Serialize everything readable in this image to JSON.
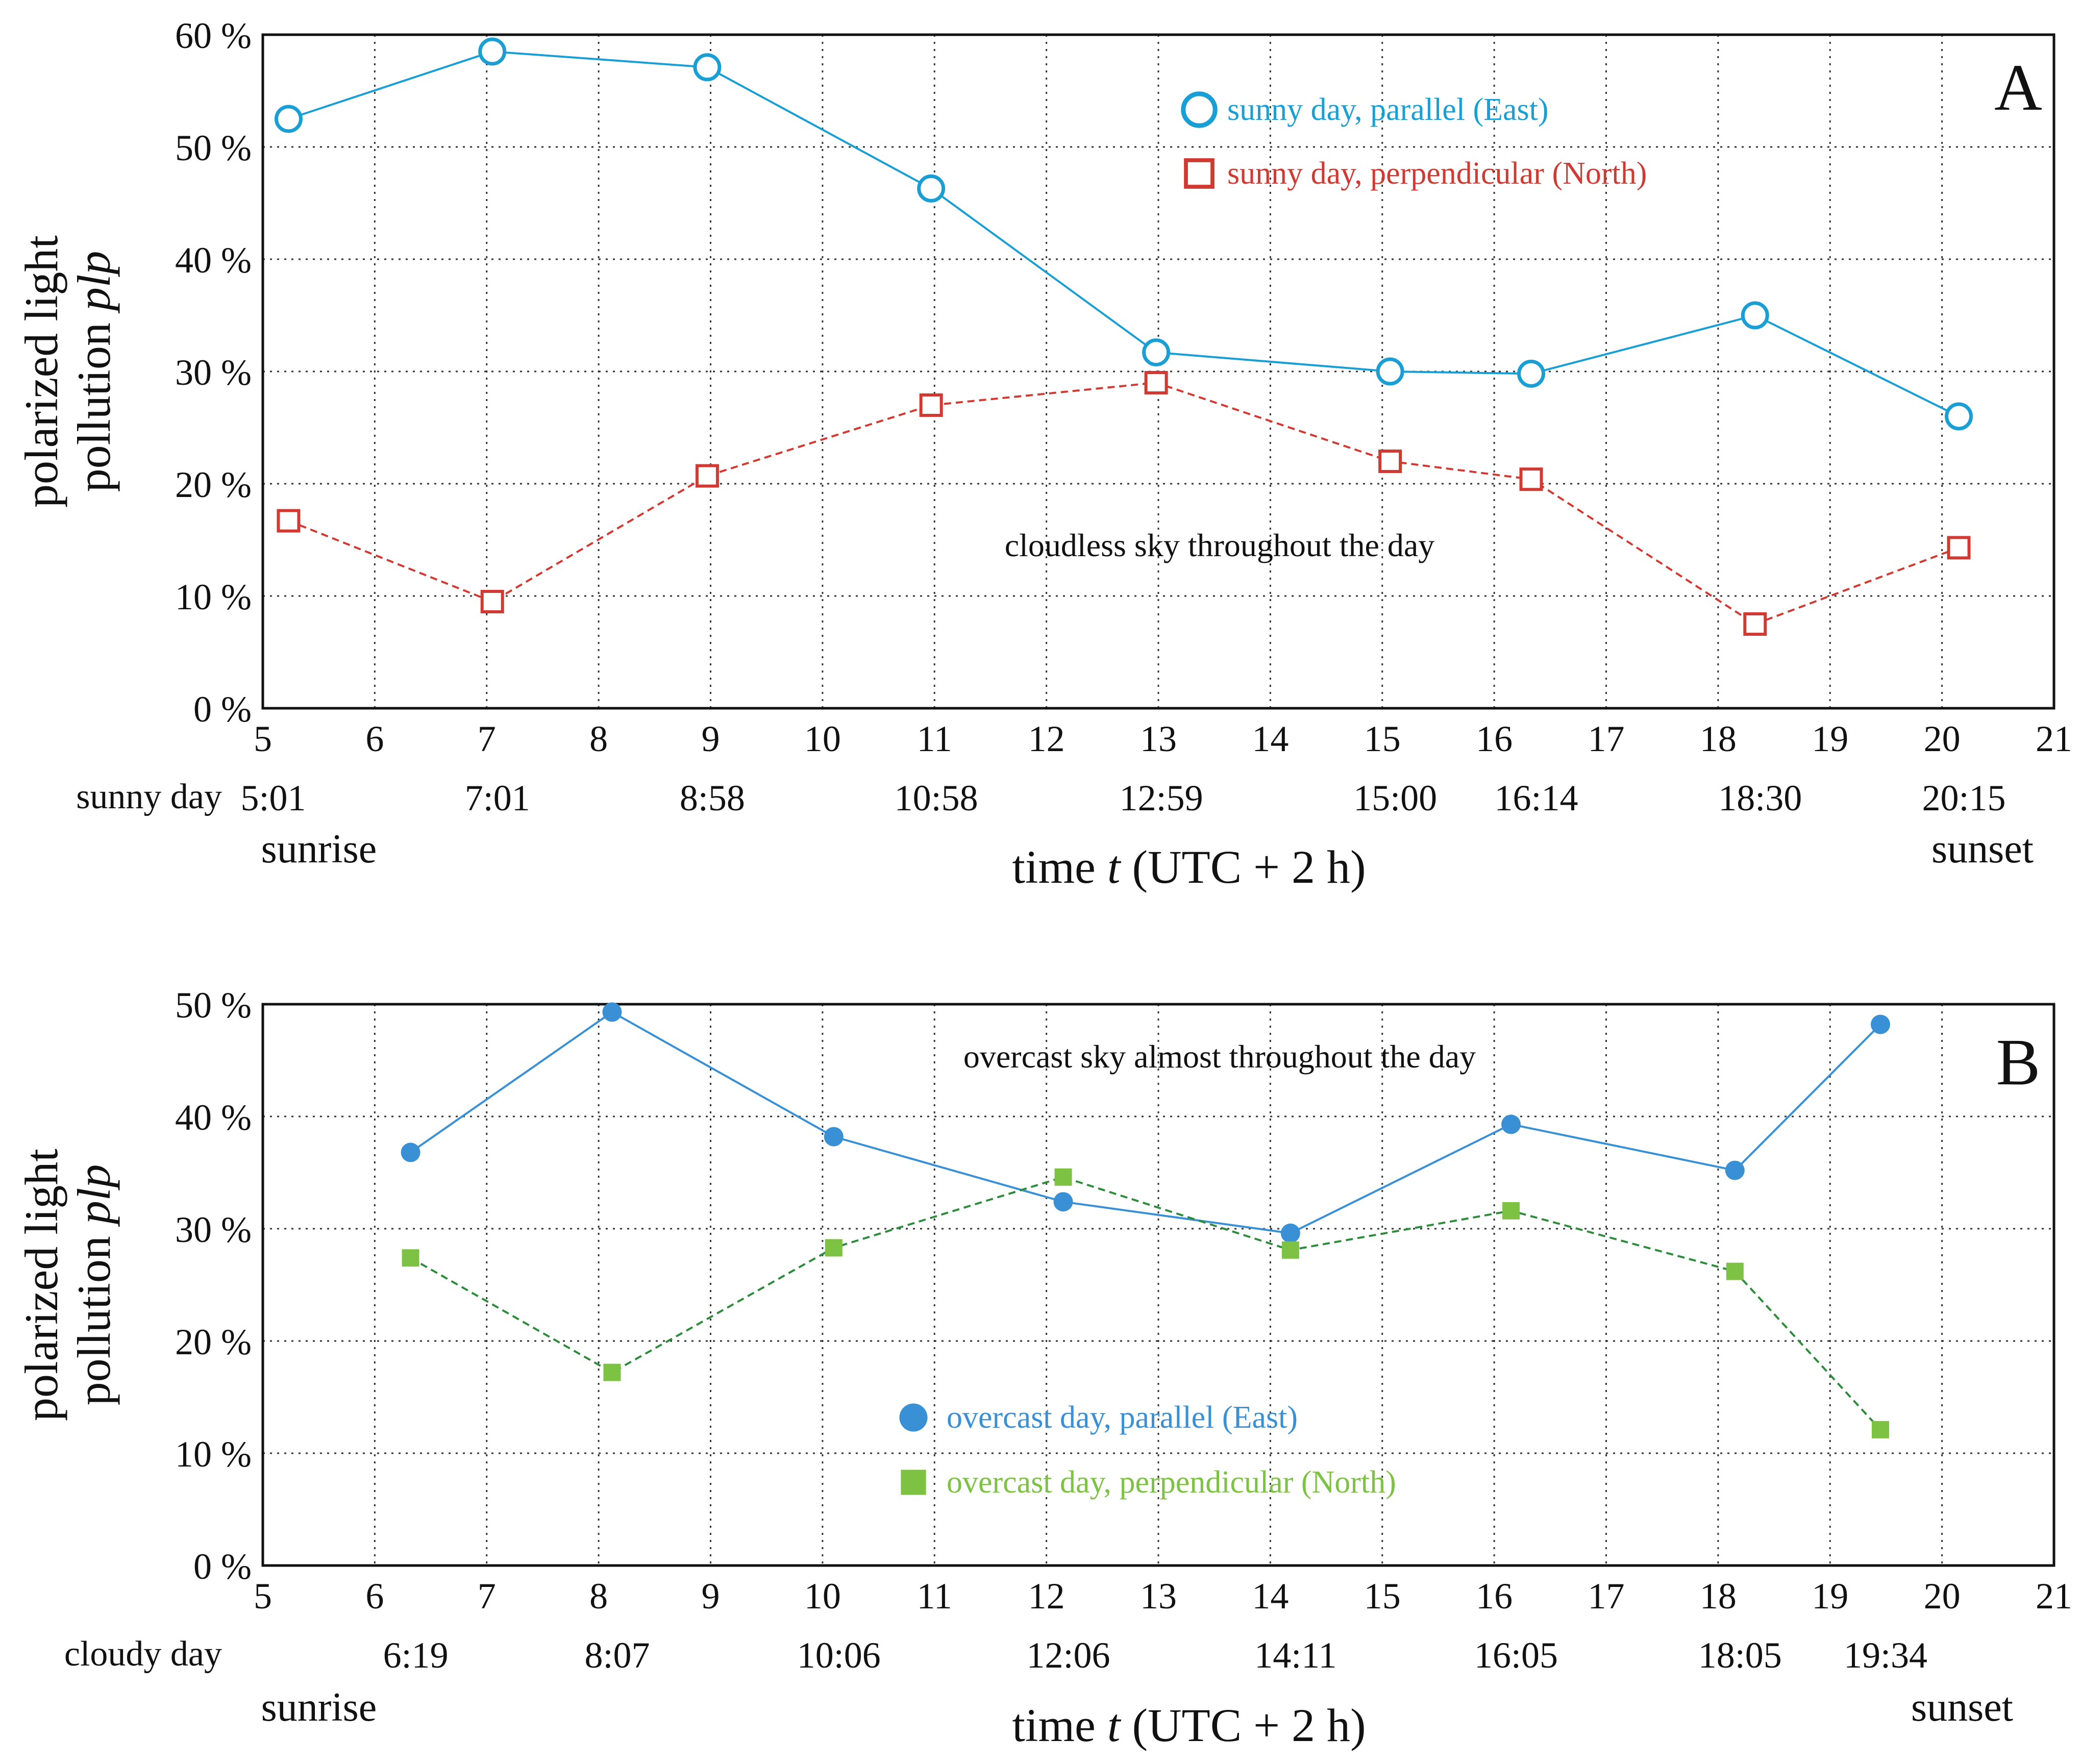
{
  "colors": {
    "sunny_parallel": "#1a9fd4",
    "sunny_perpendicular": "#d03a32",
    "overcast_parallel": "#3a90d4",
    "overcast_perpendicular": "#7dc242",
    "overcast_perpendicular_line": "#2e8b3c"
  },
  "chart_data": [
    {
      "type": "line",
      "panel_label": "A",
      "xlabel_prefix": "time ",
      "xlabel_var": "t",
      "xlabel_suffix": " (UTC + 2 h)",
      "ylabel_line1": "polarized light",
      "ylabel_line2_prefix": "pollution ",
      "ylabel_line2_var": "plp",
      "xlim": [
        5,
        21
      ],
      "ylim": [
        0,
        60
      ],
      "x_ticks": [
        5,
        6,
        7,
        8,
        9,
        10,
        11,
        12,
        13,
        14,
        15,
        16,
        17,
        18,
        19,
        20,
        21
      ],
      "y_ticks": [
        "0 %",
        "10 %",
        "20 %",
        "30 %",
        "40 %",
        "50 %",
        "60 %"
      ],
      "grid": true,
      "annotation": "cloudless sky throughout the day",
      "time_row_label": "sunny day",
      "sunrise_label": "sunrise",
      "sunset_label": "sunset",
      "time_labels": [
        "5:01",
        "7:01",
        "8:58",
        "10:58",
        "12:59",
        "15:00",
        "16:14",
        "18:30",
        "20:15"
      ],
      "series": [
        {
          "name": "sunny day, parallel (East)",
          "marker": "circle-open",
          "line": "solid",
          "x": [
            5.23,
            7.05,
            8.97,
            10.97,
            12.98,
            15.07,
            16.33,
            18.33,
            20.15
          ],
          "y": [
            52.5,
            58.5,
            57.1,
            46.3,
            31.7,
            30.0,
            29.8,
            35.0,
            26.0
          ]
        },
        {
          "name": "sunny day, perpendicular (North)",
          "marker": "square-open",
          "line": "dashed",
          "x": [
            5.23,
            7.05,
            8.97,
            10.97,
            12.98,
            15.07,
            16.33,
            18.33,
            20.15
          ],
          "y": [
            16.7,
            9.5,
            20.7,
            27.0,
            29.0,
            22.0,
            20.4,
            7.5,
            14.3
          ]
        }
      ]
    },
    {
      "type": "line",
      "panel_label": "B",
      "xlabel_prefix": "time ",
      "xlabel_var": "t",
      "xlabel_suffix": " (UTC + 2 h)",
      "ylabel_line1": "polarized light",
      "ylabel_line2_prefix": "pollution ",
      "ylabel_line2_var": "plp",
      "xlim": [
        5,
        21
      ],
      "ylim": [
        0,
        50
      ],
      "x_ticks": [
        5,
        6,
        7,
        8,
        9,
        10,
        11,
        12,
        13,
        14,
        15,
        16,
        17,
        18,
        19,
        20,
        21
      ],
      "y_ticks": [
        "0 %",
        "10 %",
        "20 %",
        "30 %",
        "40 %",
        "50 %"
      ],
      "grid": true,
      "annotation": "overcast sky almost throughout the day",
      "time_row_label": "cloudy day",
      "sunrise_label": "sunrise",
      "sunset_label": "sunset",
      "time_labels": [
        "6:19",
        "8:07",
        "10:06",
        "12:06",
        "14:11",
        "16:05",
        "18:05",
        "19:34"
      ],
      "series": [
        {
          "name": "overcast day, parallel (East)",
          "marker": "circle-filled",
          "line": "solid",
          "x": [
            6.32,
            8.12,
            10.1,
            12.15,
            14.18,
            16.15,
            18.15,
            19.45
          ],
          "y": [
            36.8,
            49.3,
            38.2,
            32.4,
            29.6,
            39.3,
            35.2,
            48.2
          ]
        },
        {
          "name": "overcast day, perpendicular (North)",
          "marker": "square-filled",
          "line": "dashed",
          "x": [
            6.32,
            8.12,
            10.1,
            12.15,
            14.18,
            16.15,
            18.15,
            19.45
          ],
          "y": [
            27.4,
            17.2,
            28.3,
            34.6,
            28.1,
            31.6,
            26.2,
            12.1
          ]
        }
      ]
    }
  ]
}
